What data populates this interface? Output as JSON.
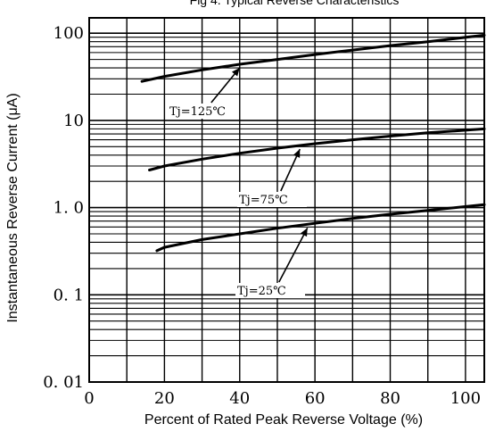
{
  "chart_data": {
    "type": "line",
    "title": "Fig 4.     Typical Reverse Characteristics",
    "xlabel": "Percent of Rated Peak Reverse Voltage (%)",
    "ylabel": "Instantaneous Reverse Current (μA)",
    "xlim": [
      0,
      105
    ],
    "ylim": [
      0.01,
      150
    ],
    "yscale": "log",
    "grid": true,
    "x_ticks": [
      0,
      20,
      40,
      60,
      80,
      100
    ],
    "x_tick_labels": [
      "0",
      "20",
      "40",
      "60",
      "80",
      "100"
    ],
    "y_ticks": [
      0.01,
      0.1,
      1.0,
      10,
      100
    ],
    "y_tick_labels": [
      "0. 01",
      "0. 1",
      "1. 0",
      "10",
      "100"
    ],
    "series": [
      {
        "name": "Tj=125℃",
        "x": [
          14,
          20,
          30,
          40,
          50,
          60,
          70,
          80,
          90,
          105
        ],
        "y": [
          28,
          32,
          38,
          44,
          50,
          57,
          64,
          72,
          80,
          95
        ]
      },
      {
        "name": "Tj=75℃",
        "x": [
          16,
          20,
          30,
          40,
          50,
          60,
          70,
          80,
          90,
          105
        ],
        "y": [
          2.7,
          3.0,
          3.6,
          4.2,
          4.8,
          5.4,
          6.0,
          6.6,
          7.2,
          8.0
        ]
      },
      {
        "name": "Tj=25℃",
        "x": [
          18,
          20,
          30,
          40,
          50,
          60,
          70,
          80,
          90,
          105
        ],
        "y": [
          0.32,
          0.35,
          0.43,
          0.5,
          0.58,
          0.66,
          0.75,
          0.84,
          0.93,
          1.08
        ]
      }
    ],
    "annotations": [
      {
        "text": "Tj=125℃",
        "series": 0,
        "arrow_to_x": 40
      },
      {
        "text": "Tj=75℃",
        "series": 1,
        "arrow_to_x": 56
      },
      {
        "text": "Tj=25℃",
        "series": 2,
        "arrow_to_x": 58
      }
    ]
  }
}
